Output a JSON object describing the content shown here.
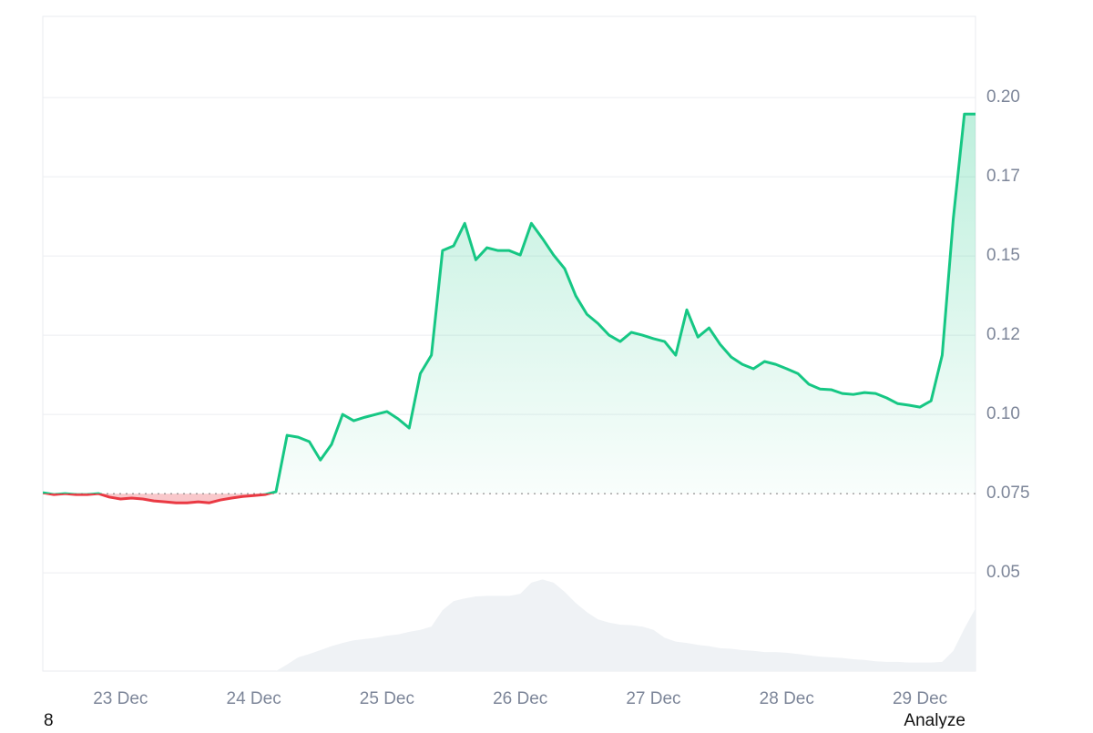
{
  "chart_data": {
    "type": "line",
    "categories": [
      null,
      null,
      null,
      null,
      null,
      null,
      null,
      "23 Dec",
      null,
      null,
      null,
      null,
      null,
      null,
      null,
      null,
      null,
      null,
      null,
      "24 Dec",
      null,
      null,
      null,
      null,
      null,
      null,
      null,
      null,
      null,
      null,
      null,
      "25 Dec",
      null,
      null,
      null,
      null,
      null,
      null,
      null,
      null,
      null,
      null,
      null,
      "26 Dec",
      null,
      null,
      null,
      null,
      null,
      null,
      null,
      null,
      null,
      null,
      null,
      "27 Dec",
      null,
      null,
      null,
      null,
      null,
      null,
      null,
      null,
      null,
      null,
      null,
      "28 Dec",
      null,
      null,
      null,
      null,
      null,
      null,
      null,
      null,
      null,
      null,
      null,
      "29 Dec",
      null,
      null,
      null,
      null,
      null
    ],
    "series": [
      {
        "color": "#16c784",
        "negative_color": "#ea3943",
        "values": [
          0.0753,
          0.0747,
          0.075,
          0.0747,
          0.0747,
          0.075,
          0.0739,
          0.0733,
          0.0736,
          0.0733,
          0.0727,
          0.0724,
          0.0721,
          0.0721,
          0.0724,
          0.0721,
          0.073,
          0.0736,
          0.0741,
          0.0744,
          0.0747,
          0.0756,
          0.0934,
          0.0928,
          0.0914,
          0.0856,
          0.0905,
          0.1,
          0.098,
          0.0991,
          0.1,
          0.1009,
          0.0986,
          0.0957,
          0.1129,
          0.1187,
          0.1517,
          0.1532,
          0.1603,
          0.1488,
          0.1526,
          0.1517,
          0.1517,
          0.1503,
          0.1603,
          0.1555,
          0.1503,
          0.146,
          0.1374,
          0.1316,
          0.1287,
          0.125,
          0.123,
          0.1259,
          0.125,
          0.1239,
          0.123,
          0.1187,
          0.133,
          0.1244,
          0.1273,
          0.1221,
          0.1181,
          0.1158,
          0.1144,
          0.1167,
          0.1158,
          0.1144,
          0.1129,
          0.1095,
          0.108,
          0.1078,
          0.1066,
          0.1063,
          0.1069,
          0.1066,
          0.1052,
          0.1034,
          0.1029,
          0.1023,
          0.1043,
          0.1187,
          0.1618,
          0.1948,
          0.1948
        ]
      },
      {
        "color": "#eff2f5",
        "axis": "y2",
        "values": [
          0,
          0,
          0,
          0,
          0,
          0,
          0,
          0,
          0,
          0,
          0,
          0,
          0,
          0,
          0,
          0,
          0,
          0,
          0,
          0,
          0,
          0,
          1,
          2.1,
          2.6,
          3.2,
          3.8,
          4.3,
          4.7,
          4.9,
          5.1,
          5.4,
          5.6,
          6,
          6.3,
          6.8,
          9.3,
          10.7,
          11.1,
          11.4,
          11.5,
          11.5,
          11.5,
          11.8,
          13.5,
          14,
          13.5,
          12.1,
          10.4,
          9,
          7.9,
          7.4,
          7.1,
          7,
          6.8,
          6.3,
          5.1,
          4.5,
          4.3,
          4,
          3.8,
          3.5,
          3.4,
          3.2,
          3.1,
          2.9,
          2.9,
          2.8,
          2.6,
          2.4,
          2.2,
          2.1,
          2,
          1.8,
          1.7,
          1.5,
          1.4,
          1.4,
          1.3,
          1.3,
          1.3,
          1.4,
          3.1,
          6.5,
          9.6
        ]
      }
    ],
    "baseline": 0.075,
    "ylim": [
      0.019,
      0.2256
    ],
    "yticks": [
      0.05,
      0.075,
      {
        "value": 0.1,
        "label": "0.10"
      },
      {
        "value": 0.125,
        "label": "0.12"
      },
      0.15,
      {
        "value": 0.175,
        "label": "0.17"
      },
      {
        "value": 0.2,
        "label": "0.20"
      }
    ],
    "y2lim": [
      0,
      100
    ],
    "grid": true
  },
  "footer": {
    "left": "8",
    "right": "Analyze"
  }
}
